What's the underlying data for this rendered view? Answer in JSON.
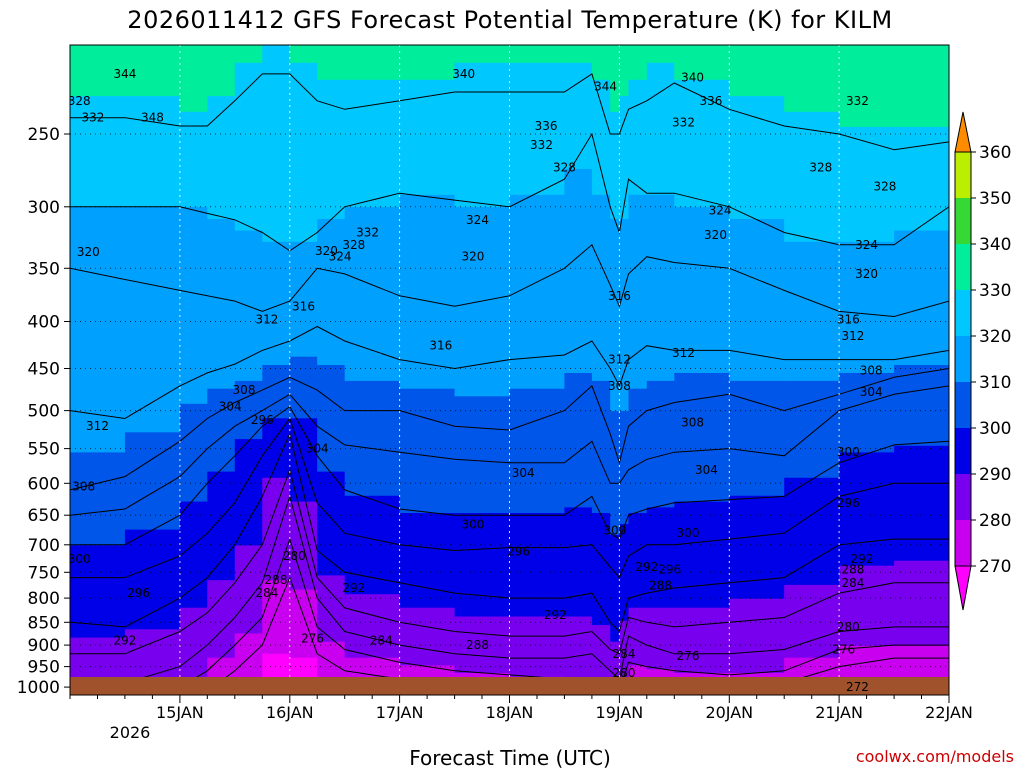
{
  "chart_data": {
    "type": "heatmap",
    "title": "2026011412 GFS Forecast Potential Temperature (K) for KILM",
    "xlabel": "Forecast Time (UTC)",
    "ylabel": "",
    "credit": "coolwx.com/models",
    "y_axis": {
      "reversed": true,
      "range": [
        1020,
        200
      ],
      "tick_labels": [
        "250",
        "300",
        "350",
        "400",
        "450",
        "500",
        "550",
        "600",
        "650",
        "700",
        "750",
        "800",
        "850",
        "900",
        "950",
        "1000"
      ],
      "tick_values": [
        250,
        300,
        350,
        400,
        450,
        500,
        550,
        600,
        650,
        700,
        750,
        800,
        850,
        900,
        950,
        1000
      ]
    },
    "x_axis": {
      "range_hours": [
        -12,
        180
      ],
      "tick_labels": [
        "15JAN",
        "16JAN",
        "17JAN",
        "18JAN",
        "19JAN",
        "20JAN",
        "21JAN",
        "22JAN"
      ],
      "tick_hours": [
        12,
        36,
        60,
        84,
        108,
        132,
        156,
        180
      ],
      "year_label": "2026"
    },
    "colorbar": {
      "labels": [
        "360",
        "350",
        "340",
        "330",
        "320",
        "310",
        "300",
        "290",
        "280",
        "270"
      ],
      "levels": [
        270,
        280,
        290,
        300,
        310,
        320,
        330,
        340,
        350,
        360
      ],
      "colors": [
        "#ff00ff",
        "#c800ef",
        "#7800ef",
        "#0000e8",
        "#0056e8",
        "#00a0ff",
        "#00c8ff",
        "#00ee9c",
        "#36d836",
        "#bbee00",
        "#ffff00",
        "#ffc800",
        "#ff8c00"
      ],
      "min": 260,
      "max": 370
    },
    "time_hours": [
      -12,
      0,
      12,
      18,
      24,
      30,
      36,
      42,
      48,
      60,
      72,
      84,
      96,
      102,
      106,
      108,
      110,
      114,
      120,
      132,
      144,
      156,
      168,
      180
    ],
    "pressure_levels": [
      250,
      300,
      350,
      400,
      450,
      500,
      550,
      600,
      650,
      700,
      750,
      800,
      850,
      900,
      950,
      1000
    ],
    "isentrope_pressure_hPa": [
      {
        "theta": 328,
        "p": [
          [
            240,
            240,
            245,
            245,
            230,
            215,
            215,
            230,
            235,
            230,
            225,
            225,
            225,
            215,
            250,
            250,
            235,
            230,
            220,
            235,
            245,
            250,
            260,
            255
          ]
        ]
      },
      {
        "theta": 320,
        "p": [
          [
            300,
            300,
            300,
            305,
            310,
            320,
            335,
            320,
            300,
            290,
            295,
            300,
            280,
            250,
            300,
            320,
            280,
            290,
            290,
            300,
            320,
            330,
            330,
            300
          ]
        ]
      },
      {
        "theta": 316,
        "p": [
          [
            350,
            360,
            370,
            375,
            380,
            390,
            380,
            350,
            355,
            375,
            385,
            375,
            350,
            330,
            365,
            385,
            355,
            340,
            345,
            350,
            370,
            390,
            395,
            380
          ]
        ]
      },
      {
        "theta": 312,
        "p": [
          [
            500,
            510,
            470,
            455,
            445,
            430,
            420,
            405,
            420,
            440,
            450,
            440,
            435,
            420,
            450,
            470,
            440,
            425,
            430,
            430,
            440,
            440,
            440,
            430
          ]
        ]
      },
      {
        "theta": 308,
        "p": [
          [
            610,
            590,
            540,
            510,
            490,
            475,
            460,
            475,
            500,
            500,
            520,
            525,
            500,
            470,
            530,
            570,
            520,
            500,
            490,
            480,
            500,
            480,
            460,
            450
          ]
        ]
      },
      {
        "theta": 304,
        "p": [
          [
            650,
            640,
            590,
            550,
            520,
            500,
            480,
            520,
            545,
            555,
            565,
            570,
            570,
            540,
            600,
            600,
            580,
            565,
            555,
            550,
            560,
            500,
            480,
            470
          ]
        ]
      },
      {
        "theta": 300,
        "p": [
          [
            700,
            700,
            650,
            600,
            560,
            520,
            495,
            560,
            610,
            640,
            650,
            650,
            650,
            620,
            680,
            690,
            650,
            640,
            630,
            625,
            620,
            570,
            545,
            540
          ]
        ]
      },
      {
        "theta": 296,
        "p": [
          [
            760,
            760,
            720,
            680,
            630,
            560,
            510,
            630,
            680,
            700,
            710,
            705,
            705,
            700,
            740,
            760,
            720,
            700,
            700,
            690,
            680,
            620,
            600,
            600
          ]
        ]
      },
      {
        "theta": 292,
        "p": [
          [
            850,
            860,
            800,
            760,
            700,
            620,
            530,
            710,
            750,
            770,
            790,
            800,
            800,
            790,
            850,
            870,
            800,
            790,
            780,
            770,
            760,
            700,
            690,
            690
          ]
        ]
      },
      {
        "theta": 288,
        "p": [
          [
            920,
            920,
            870,
            830,
            770,
            700,
            580,
            760,
            820,
            850,
            870,
            880,
            880,
            870,
            910,
            920,
            840,
            850,
            860,
            850,
            840,
            790,
            770,
            770
          ]
        ]
      },
      {
        "theta": 284,
        "p": [
          [
            990,
            990,
            950,
            900,
            840,
            770,
            620,
            800,
            870,
            900,
            920,
            930,
            930,
            920,
            960,
            980,
            880,
            900,
            920,
            920,
            910,
            870,
            860,
            860
          ]
        ]
      },
      {
        "theta": 280,
        "p": [
          [
            1020,
            1020,
            1000,
            960,
            900,
            840,
            690,
            860,
            910,
            940,
            960,
            970,
            980,
            980,
            1000,
            1010,
            940,
            950,
            960,
            970,
            960,
            910,
            900,
            900
          ]
        ]
      },
      {
        "theta": 276,
        "p": [
          [
            1020,
            1020,
            1020,
            1010,
            960,
            900,
            760,
            920,
            960,
            980,
            1000,
            1010,
            1020,
            1020,
            1020,
            1020,
            1000,
            990,
            990,
            1000,
            990,
            950,
            930,
            930
          ]
        ]
      }
    ],
    "contour_labels": [
      {
        "text": "344",
        "hour": 0,
        "p": 215
      },
      {
        "text": "348",
        "hour": 6,
        "p": 240
      },
      {
        "text": "340",
        "hour": 74,
        "p": 215
      },
      {
        "text": "344",
        "hour": 105,
        "p": 222
      },
      {
        "text": "340",
        "hour": 124,
        "p": 217
      },
      {
        "text": "336",
        "hour": 128,
        "p": 230
      },
      {
        "text": "332",
        "hour": 122,
        "p": 243
      },
      {
        "text": "336",
        "hour": 92,
        "p": 245
      },
      {
        "text": "332",
        "hour": 91,
        "p": 257
      },
      {
        "text": "328",
        "hour": 96,
        "p": 272
      },
      {
        "text": "332",
        "hour": 160,
        "p": 230
      },
      {
        "text": "328",
        "hour": 152,
        "p": 272
      },
      {
        "text": "328",
        "hour": 166,
        "p": 285
      },
      {
        "text": "328",
        "hour": -10,
        "p": 230
      },
      {
        "text": "332",
        "hour": -7,
        "p": 240
      },
      {
        "text": "324",
        "hour": 130,
        "p": 303
      },
      {
        "text": "320",
        "hour": 129,
        "p": 322
      },
      {
        "text": "324",
        "hour": 77,
        "p": 310
      },
      {
        "text": "332",
        "hour": 53,
        "p": 320
      },
      {
        "text": "328",
        "hour": 50,
        "p": 330
      },
      {
        "text": "324",
        "hour": 47,
        "p": 340
      },
      {
        "text": "320",
        "hour": 44,
        "p": 335
      },
      {
        "text": "320",
        "hour": -8,
        "p": 336
      },
      {
        "text": "320",
        "hour": 76,
        "p": 340
      },
      {
        "text": "324",
        "hour": 162,
        "p": 330
      },
      {
        "text": "320",
        "hour": 162,
        "p": 355
      },
      {
        "text": "316",
        "hour": 108,
        "p": 375
      },
      {
        "text": "316",
        "hour": 39,
        "p": 385
      },
      {
        "text": "312",
        "hour": 31,
        "p": 398
      },
      {
        "text": "316",
        "hour": 69,
        "p": 425
      },
      {
        "text": "316",
        "hour": 158,
        "p": 398
      },
      {
        "text": "312",
        "hour": 159,
        "p": 415
      },
      {
        "text": "312",
        "hour": 108,
        "p": 440
      },
      {
        "text": "312",
        "hour": 122,
        "p": 433
      },
      {
        "text": "308",
        "hour": 108,
        "p": 470
      },
      {
        "text": "308",
        "hour": 26,
        "p": 475
      },
      {
        "text": "304",
        "hour": 23,
        "p": 495
      },
      {
        "text": "308",
        "hour": 163,
        "p": 452
      },
      {
        "text": "304",
        "hour": 163,
        "p": 477
      },
      {
        "text": "312",
        "hour": -6,
        "p": 520
      },
      {
        "text": "308",
        "hour": 124,
        "p": 515
      },
      {
        "text": "296",
        "hour": 30,
        "p": 512
      },
      {
        "text": "304",
        "hour": 42,
        "p": 550
      },
      {
        "text": "300",
        "hour": 158,
        "p": 555
      },
      {
        "text": "304",
        "hour": 87,
        "p": 585
      },
      {
        "text": "304",
        "hour": 127,
        "p": 580
      },
      {
        "text": "308",
        "hour": -9,
        "p": 605
      },
      {
        "text": "296",
        "hour": 158,
        "p": 630
      },
      {
        "text": "300",
        "hour": 76,
        "p": 665
      },
      {
        "text": "300",
        "hour": 107,
        "p": 675
      },
      {
        "text": "300",
        "hour": 123,
        "p": 680
      },
      {
        "text": "296",
        "hour": 86,
        "p": 712
      },
      {
        "text": "292",
        "hour": 161,
        "p": 725
      },
      {
        "text": "300",
        "hour": -10,
        "p": 725
      },
      {
        "text": "292",
        "hour": 114,
        "p": 740
      },
      {
        "text": "296",
        "hour": 119,
        "p": 745
      },
      {
        "text": "288",
        "hour": 159,
        "p": 745
      },
      {
        "text": "280",
        "hour": 37,
        "p": 720
      },
      {
        "text": "288",
        "hour": 33,
        "p": 765
      },
      {
        "text": "284",
        "hour": 159,
        "p": 770
      },
      {
        "text": "284",
        "hour": 31,
        "p": 790
      },
      {
        "text": "296",
        "hour": 3,
        "p": 790
      },
      {
        "text": "288",
        "hour": 117,
        "p": 775
      },
      {
        "text": "292",
        "hour": 50,
        "p": 780
      },
      {
        "text": "292",
        "hour": 94,
        "p": 835
      },
      {
        "text": "280",
        "hour": 158,
        "p": 860
      },
      {
        "text": "276",
        "hour": 41,
        "p": 885
      },
      {
        "text": "284",
        "hour": 56,
        "p": 890
      },
      {
        "text": "288",
        "hour": 77,
        "p": 900
      },
      {
        "text": "276",
        "hour": 157,
        "p": 910
      },
      {
        "text": "292",
        "hour": 0,
        "p": 890
      },
      {
        "text": "284",
        "hour": 109,
        "p": 920
      },
      {
        "text": "276",
        "hour": 123,
        "p": 925
      },
      {
        "text": "280",
        "hour": 109,
        "p": 965
      },
      {
        "text": "272",
        "hour": 160,
        "p": 1000
      }
    ]
  }
}
